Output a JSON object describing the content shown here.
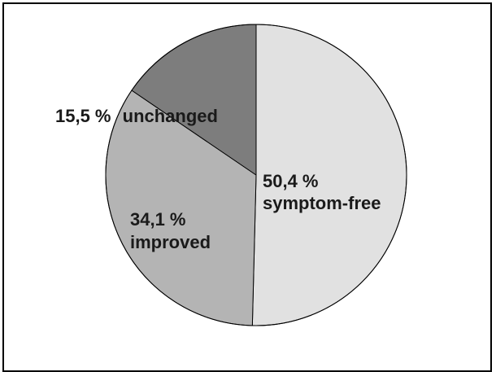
{
  "chart_data": {
    "type": "pie",
    "title": "",
    "start_angle_deg": 0,
    "direction": "clockwise",
    "slices": [
      {
        "label_value": "50,4 %",
        "label_text": "symptom-free",
        "value": 50.4,
        "color": "#e1e1e1"
      },
      {
        "label_value": "34,1 %",
        "label_text": "improved",
        "value": 34.1,
        "color": "#b4b4b4"
      },
      {
        "label_value": "15,5 %",
        "label_text": "unchanged",
        "value": 15.5,
        "color": "#7d7d7d"
      }
    ],
    "outline_color": "#000000",
    "frame_color": "#000000",
    "background_color": "#ffffff"
  }
}
